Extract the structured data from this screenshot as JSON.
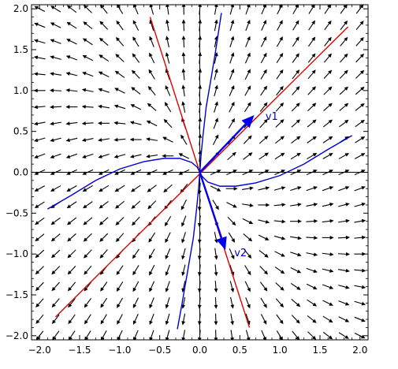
{
  "chart_data": {
    "type": "line",
    "title": "",
    "xlabel": "",
    "ylabel": "",
    "xlim": [
      -2.1,
      2.1
    ],
    "ylim": [
      -2.05,
      2.05
    ],
    "x_ticks": [
      -2.0,
      -1.5,
      -1.0,
      -0.5,
      0.0,
      0.5,
      1.0,
      1.5,
      2.0
    ],
    "y_ticks": [
      -2.0,
      -1.5,
      -1.0,
      -0.5,
      0.0,
      0.5,
      1.0,
      1.5,
      2.0
    ],
    "x_tick_labels": [
      "−2.0",
      "−1.5",
      "−1.0",
      "−0.5",
      "0.0",
      "0.5",
      "1.0",
      "1.5",
      "2.0"
    ],
    "y_tick_labels": [
      "−2.0",
      "−1.5",
      "−1.0",
      "−0.5",
      "0.0",
      "0.5",
      "1.0",
      "1.5",
      "2.0"
    ],
    "grid": false,
    "field": {
      "matrix": [
        [
          2.6,
          0.2
        ],
        [
          1.2,
          2.4
        ]
      ],
      "x_range": [
        -2.0,
        2.0
      ],
      "y_range": [
        -2.0,
        2.0
      ],
      "step": 0.2,
      "color": "#000000"
    },
    "eigenlines": [
      {
        "points": [
          [
            -1.8,
            -1.77
          ],
          [
            1.85,
            1.78
          ]
        ],
        "color": "#dd0000"
      },
      {
        "points": [
          [
            -0.62,
            1.9
          ],
          [
            0.62,
            -1.9
          ]
        ],
        "color": "#dd0000"
      }
    ],
    "trajectories": [
      {
        "color": "#0000cc",
        "points": [
          [
            -1.9,
            -0.45
          ],
          [
            -1.6,
            -0.28
          ],
          [
            -1.3,
            -0.1
          ],
          [
            -1.0,
            0.04
          ],
          [
            -0.7,
            0.13
          ],
          [
            -0.45,
            0.17
          ],
          [
            -0.25,
            0.17
          ],
          [
            -0.1,
            0.12
          ],
          [
            -0.03,
            0.06
          ],
          [
            0.0,
            0.0
          ],
          [
            0.03,
            -0.05
          ],
          [
            0.1,
            -0.12
          ],
          [
            0.25,
            -0.17
          ],
          [
            0.45,
            -0.17
          ],
          [
            0.7,
            -0.13
          ],
          [
            1.0,
            -0.04
          ],
          [
            1.3,
            0.1
          ],
          [
            1.6,
            0.28
          ],
          [
            1.9,
            0.45
          ]
        ]
      },
      {
        "color": "#0000cc",
        "points": [
          [
            -0.28,
            -1.92
          ],
          [
            -0.22,
            -1.6
          ],
          [
            -0.15,
            -1.2
          ],
          [
            -0.08,
            -0.8
          ],
          [
            -0.04,
            -0.45
          ],
          [
            -0.015,
            -0.2
          ],
          [
            0.0,
            0.0
          ],
          [
            0.015,
            0.2
          ],
          [
            0.04,
            0.45
          ],
          [
            0.08,
            0.8
          ],
          [
            0.15,
            1.2
          ],
          [
            0.2,
            1.5
          ],
          [
            0.27,
            1.95
          ]
        ]
      }
    ],
    "vectors": [
      {
        "name": "v1",
        "from": [
          0.0,
          0.0
        ],
        "to": [
          0.68,
          0.7
        ],
        "color": "#0000ee",
        "label_at": [
          0.82,
          0.69
        ]
      },
      {
        "name": "v2",
        "from": [
          0.0,
          0.0
        ],
        "to": [
          0.32,
          -0.95
        ],
        "color": "#0000ee",
        "label_at": [
          0.43,
          -0.98
        ]
      }
    ]
  }
}
